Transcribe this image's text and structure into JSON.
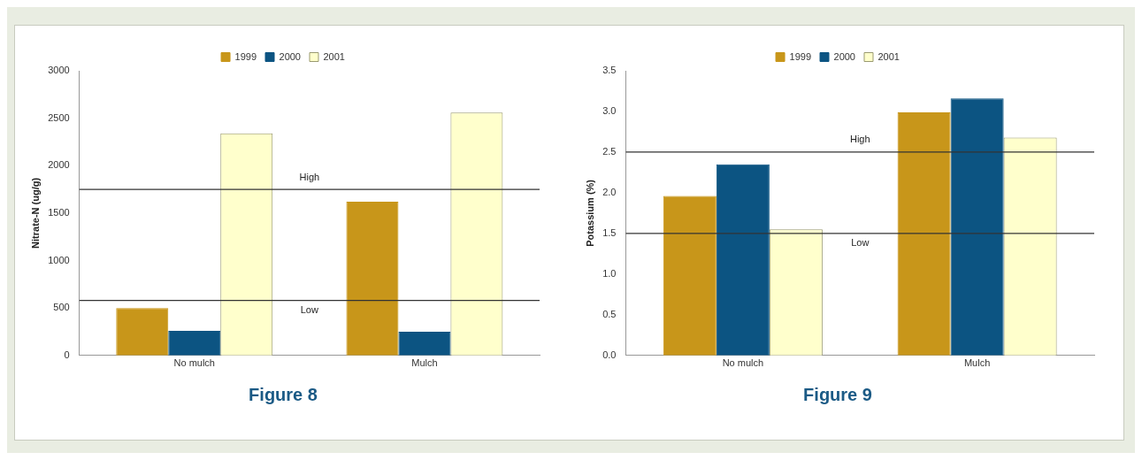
{
  "chart_data": [
    {
      "type": "bar",
      "title": "Figure 8",
      "ylabel": "Nitrate-N (ug/g)",
      "categories": [
        "No mulch",
        "Mulch"
      ],
      "series": [
        {
          "name": "1999",
          "color": "#c8961a",
          "values": [
            500,
            1620
          ]
        },
        {
          "name": "2000",
          "color": "#0c5482",
          "values": [
            260,
            250
          ]
        },
        {
          "name": "2001",
          "color": "#ffffcc",
          "values": [
            2340,
            2560
          ]
        }
      ],
      "ylim": [
        0,
        3000
      ],
      "yticks": [
        0,
        500,
        1000,
        1500,
        2000,
        2500,
        3000
      ],
      "grid": false,
      "legend": "top",
      "ref_lines": [
        {
          "axis": "y",
          "value": 1750,
          "label": "High"
        },
        {
          "axis": "y",
          "value": 580,
          "label": "Low"
        }
      ]
    },
    {
      "type": "bar",
      "title": "Figure 9",
      "ylabel": "Potassium (%)",
      "categories": [
        "No mulch",
        "Mulch"
      ],
      "series": [
        {
          "name": "1999",
          "color": "#c8961a",
          "values": [
            1.96,
            2.99
          ]
        },
        {
          "name": "2000",
          "color": "#0c5482",
          "values": [
            2.35,
            3.16
          ]
        },
        {
          "name": "2001",
          "color": "#ffffcc",
          "values": [
            1.55,
            2.68
          ]
        }
      ],
      "ylim": [
        0,
        3.5
      ],
      "yticks": [
        {
          "value": 0,
          "label": "0.0"
        },
        {
          "value": 0.5,
          "label": "0.5"
        },
        {
          "value": 1,
          "label": "1.0"
        },
        {
          "value": 1.5,
          "label": "1.5"
        },
        {
          "value": 2,
          "label": "2.0"
        },
        {
          "value": 2.5,
          "label": "2.5"
        },
        {
          "value": 3,
          "label": "3.0"
        },
        {
          "value": 3.5,
          "label": "3.5"
        }
      ],
      "grid": false,
      "legend": "top",
      "ref_lines": [
        {
          "axis": "y",
          "value": 2.5,
          "label": "High"
        },
        {
          "axis": "y",
          "value": 1.5,
          "label": "Low"
        }
      ]
    }
  ]
}
